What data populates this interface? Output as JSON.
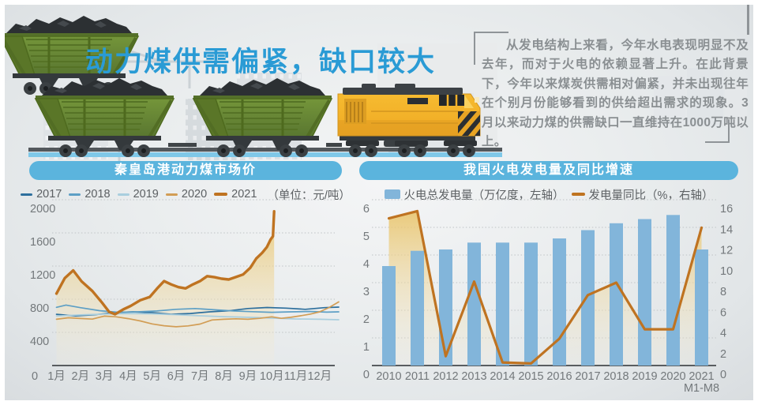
{
  "title": "动力煤供需偏紧，缺口较大",
  "commentary": "从发电结构上来看，今年水电表现明显不及去年，而对于火电的依赖显著上升。在此背景下，今年以来煤炭供需相对偏紧，并未出现往年在个别月份能够看到的供给超出需求的现象。3月以来动力煤的供需缺口一直维持在1000万吨以上。",
  "colors": {
    "title_blue": "#2a9bd5",
    "panel_header_bg": "#5bb4dd",
    "bar_blue": "#82b5da",
    "line_orange": "#bf7321",
    "grid_grey": "#c8ccce",
    "axis_text": "#73787b",
    "area_fill_top": "rgba(233,196,106,0.88)",
    "area_fill_bottom": "rgba(246,238,215,0.15)"
  },
  "chart_data": [
    {
      "type": "line",
      "header": "秦皇岛港动力煤市场价",
      "unit_label": "（单位：元/吨）",
      "ylabel": "元/吨",
      "ylim": [
        0,
        2100
      ],
      "y_ticks": [
        2000,
        1600,
        1200,
        800,
        400,
        0
      ],
      "origin_label": "0",
      "x_tick_labels": [
        "1月",
        "2月",
        "3月",
        "4月",
        "5月",
        "6月",
        "7月",
        "8月",
        "9月",
        "10月",
        "11月",
        "12月"
      ],
      "legend_position": "top",
      "grid": "dotted-horizontal",
      "series": [
        {
          "name": "2017",
          "color": "#2d6f9d",
          "width": 1.7,
          "points": [
            [
              1,
              618
            ],
            [
              1.8,
              598
            ],
            [
              2.6,
              612
            ],
            [
              3.4,
              638
            ],
            [
              4.2,
              648
            ],
            [
              5,
              638
            ],
            [
              5.8,
              618
            ],
            [
              6.6,
              628
            ],
            [
              7.4,
              648
            ],
            [
              8.2,
              660
            ],
            [
              9,
              688
            ],
            [
              9.8,
              700
            ],
            [
              10.6,
              692
            ],
            [
              11.4,
              678
            ],
            [
              12.2,
              698
            ],
            [
              12.8,
              705
            ]
          ]
        },
        {
          "name": "2018",
          "color": "#5d9fc5",
          "width": 1.7,
          "points": [
            [
              1,
              702
            ],
            [
              1.4,
              730
            ],
            [
              2,
              698
            ],
            [
              2.8,
              662
            ],
            [
              3.6,
              642
            ],
            [
              4.4,
              648
            ],
            [
              5.2,
              658
            ],
            [
              6,
              678
            ],
            [
              6.8,
              688
            ],
            [
              7.6,
              672
            ],
            [
              8.4,
              658
            ],
            [
              9.2,
              650
            ],
            [
              10,
              642
            ],
            [
              10.8,
              648
            ],
            [
              11.6,
              652
            ],
            [
              12.3,
              644
            ],
            [
              12.8,
              648
            ]
          ]
        },
        {
          "name": "2019",
          "color": "#a9cede",
          "width": 1.7,
          "points": [
            [
              1,
              598
            ],
            [
              2,
              610
            ],
            [
              3,
              620
            ],
            [
              4,
              628
            ],
            [
              5,
              624
            ],
            [
              6,
              612
            ],
            [
              7,
              600
            ],
            [
              8,
              590
            ],
            [
              9,
              582
            ],
            [
              10,
              572
            ],
            [
              11,
              562
            ],
            [
              12,
              558
            ],
            [
              12.8,
              552
            ]
          ]
        },
        {
          "name": "2020",
          "color": "#d29d55",
          "width": 1.7,
          "points": [
            [
              1,
              558
            ],
            [
              1.5,
              576
            ],
            [
              2,
              568
            ],
            [
              2.5,
              560
            ],
            [
              3,
              596
            ],
            [
              3.5,
              588
            ],
            [
              4,
              566
            ],
            [
              4.5,
              538
            ],
            [
              5,
              502
            ],
            [
              5.5,
              480
            ],
            [
              6,
              468
            ],
            [
              6.5,
              478
            ],
            [
              7,
              500
            ],
            [
              7.5,
              550
            ],
            [
              8,
              558
            ],
            [
              8.5,
              564
            ],
            [
              9,
              558
            ],
            [
              9.5,
              570
            ],
            [
              10,
              588
            ],
            [
              10.4,
              570
            ],
            [
              10.8,
              582
            ],
            [
              11.2,
              600
            ],
            [
              11.6,
              620
            ],
            [
              12,
              648
            ],
            [
              12.4,
              700
            ],
            [
              12.8,
              768
            ]
          ]
        },
        {
          "name": "2021",
          "color": "#bf7321",
          "width": 3.4,
          "area": true,
          "points": [
            [
              1,
              868
            ],
            [
              1.35,
              1055
            ],
            [
              1.7,
              1148
            ],
            [
              2.05,
              1015
            ],
            [
              2.5,
              898
            ],
            [
              2.9,
              760
            ],
            [
              3.2,
              648
            ],
            [
              3.45,
              618
            ],
            [
              3.8,
              678
            ],
            [
              4.1,
              718
            ],
            [
              4.5,
              788
            ],
            [
              4.9,
              828
            ],
            [
              5.2,
              928
            ],
            [
              5.5,
              1018
            ],
            [
              5.8,
              978
            ],
            [
              6.1,
              946
            ],
            [
              6.4,
              930
            ],
            [
              6.7,
              978
            ],
            [
              7,
              1018
            ],
            [
              7.3,
              1078
            ],
            [
              7.6,
              1066
            ],
            [
              7.9,
              1048
            ],
            [
              8.2,
              1038
            ],
            [
              8.5,
              1068
            ],
            [
              8.8,
              1098
            ],
            [
              9.1,
              1178
            ],
            [
              9.35,
              1290
            ],
            [
              9.6,
              1360
            ],
            [
              9.8,
              1430
            ],
            [
              9.95,
              1520
            ],
            [
              10.05,
              1560
            ],
            [
              10.1,
              1860
            ]
          ]
        }
      ]
    },
    {
      "type": "bar+line",
      "header": "我国火电发电量及同比增速",
      "legend": [
        {
          "label": "火电总发电量（万亿度，左轴）",
          "marker": "bar",
          "color": "#82b5da"
        },
        {
          "label": "发电量同比（%，右轴）",
          "marker": "line",
          "color": "#bf7321"
        }
      ],
      "categories": [
        "2010",
        "2011",
        "2012",
        "2013",
        "2014",
        "2015",
        "2016",
        "2017",
        "2018",
        "2019",
        "2020",
        "2021"
      ],
      "last_category_note": "M1-M8",
      "left_axis": {
        "ticks": [
          6,
          5,
          4,
          3,
          2,
          1,
          0
        ],
        "max": 6,
        "unit": "万亿度"
      },
      "right_axis": {
        "ticks": [
          16,
          14,
          12,
          10,
          8,
          6,
          4,
          2,
          0
        ],
        "max": 16,
        "unit": "%"
      },
      "grid": "dotted-horizontal",
      "series": [
        {
          "name": "火电总发电量",
          "type": "bar",
          "axis": "left",
          "color": "#82b5da",
          "values": [
            3.6,
            4.15,
            4.2,
            4.45,
            4.45,
            4.45,
            4.6,
            4.9,
            5.15,
            5.3,
            5.45,
            4.2
          ]
        },
        {
          "name": "发电量同比",
          "type": "line",
          "axis": "right",
          "color": "#bf7321",
          "values": [
            14.2,
            14.9,
            0.9,
            8.1,
            0.3,
            0.2,
            2.6,
            6.8,
            8.0,
            3.5,
            3.5,
            13.3
          ]
        }
      ]
    }
  ]
}
